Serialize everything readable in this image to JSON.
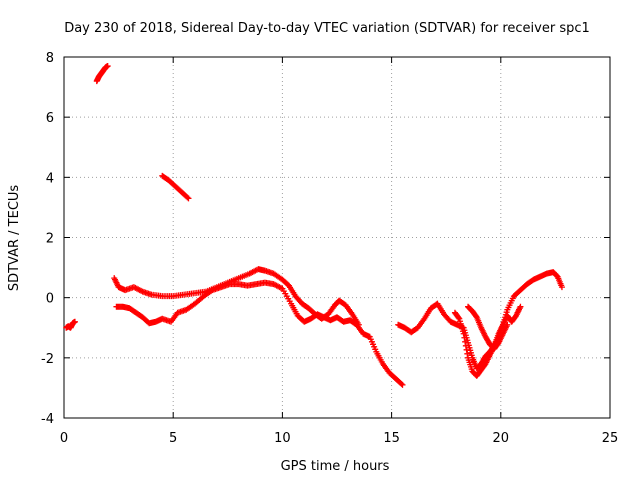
{
  "chart_data": {
    "type": "scatter",
    "title": "Day 230 of 2018, Sidereal Day-to-day VTEC variation (SDTVAR) for receiver spc1",
    "xlabel": "GPS time / hours",
    "ylabel": "SDTVAR / TECUs",
    "xlim": [
      0,
      25
    ],
    "ylim": [
      -4,
      8
    ],
    "x_ticks": [
      0,
      5,
      10,
      15,
      20,
      25
    ],
    "x_tick_labels": [
      "0",
      "5",
      "10",
      "15",
      "20",
      "25"
    ],
    "y_ticks": [
      -4,
      -2,
      0,
      2,
      4,
      6,
      8
    ],
    "y_tick_labels": [
      "-4",
      "-2",
      "0",
      "2",
      "4",
      "6",
      "8"
    ],
    "grid": true,
    "marker": "+",
    "color": "#ff0000",
    "series": [
      {
        "name": "SDTVAR segment 1",
        "points": [
          [
            0.1,
            -1.0
          ],
          [
            0.2,
            -0.95
          ],
          [
            0.3,
            -1.0
          ],
          [
            0.4,
            -0.85
          ],
          [
            0.5,
            -0.8
          ]
        ]
      },
      {
        "name": "SDTVAR segment 2",
        "points": [
          [
            1.5,
            7.2
          ],
          [
            1.6,
            7.35
          ],
          [
            1.7,
            7.45
          ],
          [
            1.8,
            7.55
          ],
          [
            1.9,
            7.65
          ],
          [
            2.0,
            7.7
          ]
        ]
      },
      {
        "name": "SDTVAR segment 3",
        "points": [
          [
            4.5,
            4.05
          ],
          [
            4.8,
            3.9
          ],
          [
            5.1,
            3.7
          ],
          [
            5.4,
            3.5
          ],
          [
            5.7,
            3.3
          ]
        ]
      },
      {
        "name": "SDTVAR segment 4 (upper track)",
        "points": [
          [
            2.3,
            0.65
          ],
          [
            2.5,
            0.35
          ],
          [
            2.8,
            0.25
          ],
          [
            3.2,
            0.35
          ],
          [
            3.6,
            0.2
          ],
          [
            4.0,
            0.1
          ],
          [
            4.5,
            0.05
          ],
          [
            5.0,
            0.05
          ],
          [
            5.5,
            0.1
          ],
          [
            6.0,
            0.15
          ],
          [
            6.5,
            0.2
          ],
          [
            7.0,
            0.35
          ],
          [
            7.5,
            0.5
          ],
          [
            8.0,
            0.65
          ],
          [
            8.5,
            0.8
          ],
          [
            8.9,
            0.95
          ],
          [
            9.2,
            0.9
          ],
          [
            9.6,
            0.8
          ],
          [
            10.0,
            0.6
          ],
          [
            10.3,
            0.4
          ],
          [
            10.6,
            0.05
          ],
          [
            10.9,
            -0.2
          ],
          [
            11.2,
            -0.35
          ],
          [
            11.5,
            -0.55
          ],
          [
            11.8,
            -0.7
          ],
          [
            12.1,
            -0.55
          ],
          [
            12.4,
            -0.25
          ],
          [
            12.6,
            -0.1
          ],
          [
            12.9,
            -0.25
          ],
          [
            13.2,
            -0.55
          ],
          [
            13.5,
            -0.9
          ]
        ]
      },
      {
        "name": "SDTVAR segment 5 (lower track)",
        "points": [
          [
            2.4,
            -0.3
          ],
          [
            2.7,
            -0.3
          ],
          [
            3.0,
            -0.35
          ],
          [
            3.3,
            -0.5
          ],
          [
            3.6,
            -0.65
          ],
          [
            3.9,
            -0.85
          ],
          [
            4.2,
            -0.8
          ],
          [
            4.5,
            -0.7
          ],
          [
            4.9,
            -0.8
          ],
          [
            5.2,
            -0.5
          ],
          [
            5.6,
            -0.4
          ],
          [
            6.0,
            -0.2
          ],
          [
            6.4,
            0.05
          ],
          [
            6.8,
            0.25
          ],
          [
            7.2,
            0.35
          ],
          [
            7.6,
            0.45
          ],
          [
            8.0,
            0.45
          ],
          [
            8.4,
            0.4
          ],
          [
            8.8,
            0.45
          ],
          [
            9.2,
            0.5
          ],
          [
            9.6,
            0.45
          ],
          [
            10.0,
            0.3
          ],
          [
            10.4,
            -0.2
          ],
          [
            10.7,
            -0.6
          ],
          [
            11.0,
            -0.8
          ],
          [
            11.3,
            -0.7
          ],
          [
            11.6,
            -0.55
          ],
          [
            11.9,
            -0.65
          ],
          [
            12.2,
            -0.75
          ],
          [
            12.5,
            -0.65
          ],
          [
            12.8,
            -0.8
          ],
          [
            13.1,
            -0.75
          ],
          [
            13.4,
            -0.9
          ],
          [
            13.7,
            -1.2
          ],
          [
            14.0,
            -1.3
          ],
          [
            14.3,
            -1.8
          ],
          [
            14.6,
            -2.2
          ],
          [
            14.9,
            -2.5
          ],
          [
            15.2,
            -2.7
          ],
          [
            15.5,
            -2.9
          ]
        ]
      },
      {
        "name": "SDTVAR segment 6 (upper track)",
        "points": [
          [
            15.3,
            -0.9
          ],
          [
            15.6,
            -1.0
          ],
          [
            15.9,
            -1.15
          ],
          [
            16.2,
            -1.0
          ],
          [
            16.5,
            -0.7
          ],
          [
            16.8,
            -0.35
          ],
          [
            17.1,
            -0.2
          ],
          [
            17.4,
            -0.55
          ],
          [
            17.7,
            -0.8
          ],
          [
            18.0,
            -0.9
          ],
          [
            18.3,
            -1.0
          ],
          [
            18.5,
            -1.5
          ],
          [
            18.7,
            -2.0
          ],
          [
            18.9,
            -2.35
          ],
          [
            19.1,
            -2.2
          ],
          [
            19.3,
            -1.95
          ],
          [
            19.5,
            -1.8
          ],
          [
            19.7,
            -1.6
          ],
          [
            19.9,
            -1.3
          ],
          [
            20.1,
            -0.9
          ],
          [
            20.3,
            -0.4
          ],
          [
            20.6,
            0.05
          ],
          [
            20.9,
            0.25
          ],
          [
            21.2,
            0.45
          ],
          [
            21.5,
            0.6
          ],
          [
            21.8,
            0.7
          ],
          [
            22.1,
            0.8
          ],
          [
            22.4,
            0.85
          ],
          [
            22.6,
            0.7
          ],
          [
            22.8,
            0.35
          ]
        ]
      },
      {
        "name": "SDTVAR segment 7 (lower track)",
        "points": [
          [
            17.9,
            -0.5
          ],
          [
            18.1,
            -0.7
          ],
          [
            18.3,
            -1.2
          ],
          [
            18.5,
            -2.0
          ],
          [
            18.7,
            -2.45
          ],
          [
            18.9,
            -2.6
          ],
          [
            19.1,
            -2.4
          ],
          [
            19.3,
            -2.2
          ],
          [
            19.5,
            -1.9
          ],
          [
            19.7,
            -1.6
          ],
          [
            19.9,
            -1.2
          ],
          [
            20.1,
            -0.9
          ],
          [
            20.3,
            -0.6
          ],
          [
            20.5,
            -0.8
          ],
          [
            20.7,
            -0.6
          ],
          [
            20.9,
            -0.3
          ]
        ]
      },
      {
        "name": "SDTVAR segment 8",
        "points": [
          [
            18.5,
            -0.3
          ],
          [
            18.7,
            -0.45
          ],
          [
            18.9,
            -0.65
          ],
          [
            19.1,
            -1.0
          ],
          [
            19.3,
            -1.3
          ],
          [
            19.5,
            -1.55
          ],
          [
            19.7,
            -1.7
          ],
          [
            19.9,
            -1.5
          ],
          [
            20.1,
            -1.2
          ],
          [
            20.3,
            -0.9
          ]
        ]
      }
    ]
  }
}
